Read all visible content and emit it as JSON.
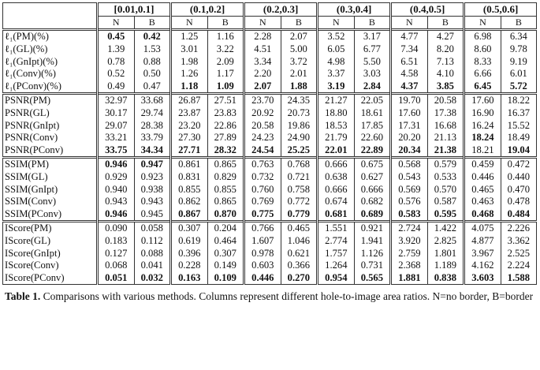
{
  "table": {
    "header": [
      "[0.01,0.1]",
      "(0.1,0.2]",
      "(0.2,0.3]",
      "(0.3,0.4]",
      "(0.4,0.5]",
      "(0.5,0.6]"
    ],
    "subheader": [
      "N",
      "B"
    ],
    "sections": [
      {
        "rows": [
          {
            "label": "ℓ₁(PM)(%)",
            "cells": [
              "0.45",
              "0.42",
              "1.25",
              "1.16",
              "2.28",
              "2.07",
              "3.52",
              "3.17",
              "4.77",
              "4.27",
              "6.98",
              "6.34"
            ],
            "bold": [
              0,
              1
            ]
          },
          {
            "label": "ℓ₁(GL)(%)",
            "cells": [
              "1.39",
              "1.53",
              "3.01",
              "3.22",
              "4.51",
              "5.00",
              "6.05",
              "6.77",
              "7.34",
              "8.20",
              "8.60",
              "9.78"
            ],
            "bold": []
          },
          {
            "label": "ℓ₁(GnIpt)(%)",
            "cells": [
              "0.78",
              "0.88",
              "1.98",
              "2.09",
              "3.34",
              "3.72",
              "4.98",
              "5.50",
              "6.51",
              "7.13",
              "8.33",
              "9.19"
            ],
            "bold": []
          },
          {
            "label": "ℓ₁(Conv)(%)",
            "cells": [
              "0.52",
              "0.50",
              "1.26",
              "1.17",
              "2.20",
              "2.01",
              "3.37",
              "3.03",
              "4.58",
              "4.10",
              "6.66",
              "6.01"
            ],
            "bold": []
          },
          {
            "label": "ℓ₁(PConv)(%)",
            "cells": [
              "0.49",
              "0.47",
              "1.18",
              "1.09",
              "2.07",
              "1.88",
              "3.19",
              "2.84",
              "4.37",
              "3.85",
              "6.45",
              "5.72"
            ],
            "bold": [
              2,
              3,
              4,
              5,
              6,
              7,
              8,
              9,
              10,
              11
            ]
          }
        ]
      },
      {
        "rows": [
          {
            "label": "PSNR(PM)",
            "cells": [
              "32.97",
              "33.68",
              "26.87",
              "27.51",
              "23.70",
              "24.35",
              "21.27",
              "22.05",
              "19.70",
              "20.58",
              "17.60",
              "18.22"
            ],
            "bold": []
          },
          {
            "label": "PSNR(GL)",
            "cells": [
              "30.17",
              "29.74",
              "23.87",
              "23.83",
              "20.92",
              "20.73",
              "18.80",
              "18.61",
              "17.60",
              "17.38",
              "16.90",
              "16.37"
            ],
            "bold": []
          },
          {
            "label": "PSNR(GnIpt)",
            "cells": [
              "29.07",
              "28.38",
              "23.20",
              "22.86",
              "20.58",
              "19.86",
              "18.53",
              "17.85",
              "17.31",
              "16.68",
              "16.24",
              "15.52"
            ],
            "bold": []
          },
          {
            "label": "PSNR(Conv)",
            "cells": [
              "33.21",
              "33.79",
              "27.30",
              "27.89",
              "24.23",
              "24.90",
              "21.79",
              "22.60",
              "20.20",
              "21.13",
              "18.24",
              "18.49"
            ],
            "bold": [
              10
            ]
          },
          {
            "label": "PSNR(PConv)",
            "cells": [
              "33.75",
              "34.34",
              "27.71",
              "28.32",
              "24.54",
              "25.25",
              "22.01",
              "22.89",
              "20.34",
              "21.38",
              "18.21",
              "19.04"
            ],
            "bold": [
              0,
              1,
              2,
              3,
              4,
              5,
              6,
              7,
              8,
              9,
              11
            ]
          }
        ]
      },
      {
        "rows": [
          {
            "label": "SSIM(PM)",
            "cells": [
              "0.946",
              "0.947",
              "0.861",
              "0.865",
              "0.763",
              "0.768",
              "0.666",
              "0.675",
              "0.568",
              "0.579",
              "0.459",
              "0.472"
            ],
            "bold": [
              0,
              1
            ]
          },
          {
            "label": "SSIM(GL)",
            "cells": [
              "0.929",
              "0.923",
              "0.831",
              "0.829",
              "0.732",
              "0.721",
              "0.638",
              "0.627",
              "0.543",
              "0.533",
              "0.446",
              "0.440"
            ],
            "bold": []
          },
          {
            "label": "SSIM(GnIpt)",
            "cells": [
              "0.940",
              "0.938",
              "0.855",
              "0.855",
              "0.760",
              "0.758",
              "0.666",
              "0.666",
              "0.569",
              "0.570",
              "0.465",
              "0.470"
            ],
            "bold": []
          },
          {
            "label": "SSIM(Conv)",
            "cells": [
              "0.943",
              "0.943",
              "0.862",
              "0.865",
              "0.769",
              "0.772",
              "0.674",
              "0.682",
              "0.576",
              "0.587",
              "0.463",
              "0.478"
            ],
            "bold": []
          },
          {
            "label": "SSIM(PConv)",
            "cells": [
              "0.946",
              "0.945",
              "0.867",
              "0.870",
              "0.775",
              "0.779",
              "0.681",
              "0.689",
              "0.583",
              "0.595",
              "0.468",
              "0.484"
            ],
            "bold": [
              0,
              2,
              3,
              4,
              5,
              6,
              7,
              8,
              9,
              10,
              11
            ]
          }
        ]
      },
      {
        "rows": [
          {
            "label": "IScore(PM)",
            "cells": [
              "0.090",
              "0.058",
              "0.307",
              "0.204",
              "0.766",
              "0.465",
              "1.551",
              "0.921",
              "2.724",
              "1.422",
              "4.075",
              "2.226"
            ],
            "bold": []
          },
          {
            "label": "IScore(GL)",
            "cells": [
              "0.183",
              "0.112",
              "0.619",
              "0.464",
              "1.607",
              "1.046",
              "2.774",
              "1.941",
              "3.920",
              "2.825",
              "4.877",
              "3.362"
            ],
            "bold": []
          },
          {
            "label": "IScore(GnIpt)",
            "cells": [
              "0.127",
              "0.088",
              "0.396",
              "0.307",
              "0.978",
              "0.621",
              "1.757",
              "1.126",
              "2.759",
              "1.801",
              "3.967",
              "2.525"
            ],
            "bold": []
          },
          {
            "label": "IScore(Conv)",
            "cells": [
              "0.068",
              "0.041",
              "0.228",
              "0.149",
              "0.603",
              "0.366",
              "1.264",
              "0.731",
              "2.368",
              "1.189",
              "4.162",
              "2.224"
            ],
            "bold": []
          },
          {
            "label": "IScore(PConv)",
            "cells": [
              "0.051",
              "0.032",
              "0.163",
              "0.109",
              "0.446",
              "0.270",
              "0.954",
              "0.565",
              "1.881",
              "0.838",
              "3.603",
              "1.588"
            ],
            "bold": [
              0,
              1,
              2,
              3,
              4,
              5,
              6,
              7,
              8,
              9,
              10,
              11
            ]
          }
        ]
      }
    ]
  },
  "caption": {
    "label": "Table 1.",
    "text": "Comparisons with various methods. Columns represent different hole-to-image area ratios. N=no border, B=border"
  }
}
